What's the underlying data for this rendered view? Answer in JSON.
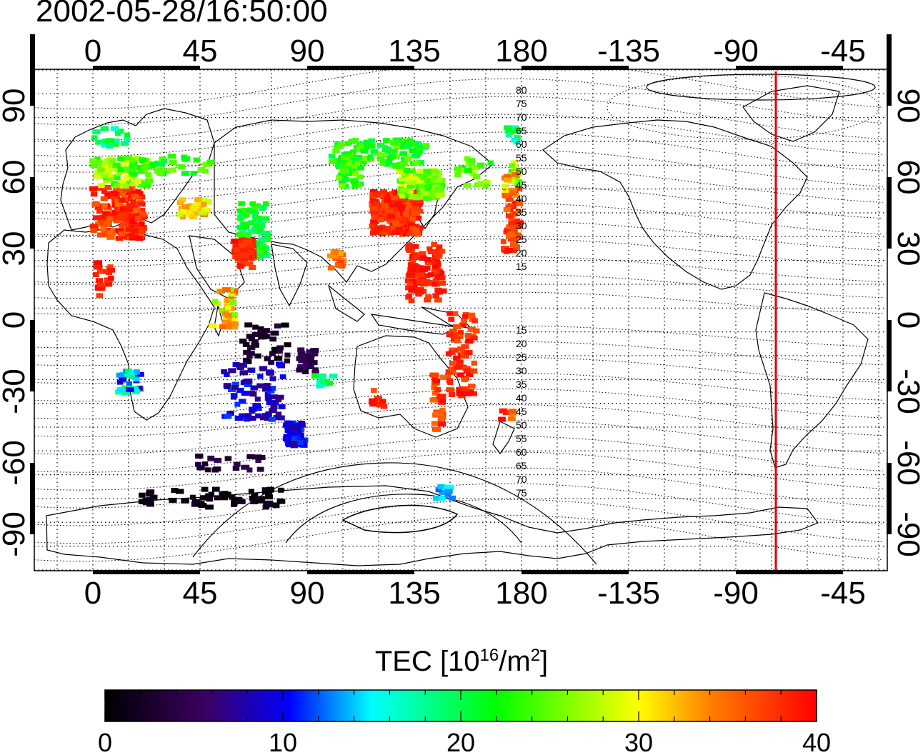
{
  "timestamp": "2002-05-28/16:50:00",
  "map": {
    "top_axis_labels": [
      "0",
      "45",
      "90",
      "135",
      "180",
      "-135",
      "-90",
      "-45"
    ],
    "bottom_axis_labels": [
      "0",
      "45",
      "90",
      "135",
      "180",
      "-135",
      "-90",
      "-45"
    ],
    "left_axis_labels": [
      "90",
      "60",
      "30",
      "0",
      "-30",
      "-60",
      "-90"
    ],
    "right_axis_labels": [
      "90",
      "60",
      "30",
      "0",
      "-30",
      "-60",
      "-90"
    ],
    "north_mlat_labels": [
      "80",
      "75",
      "70",
      "65",
      "60",
      "55",
      "50",
      "45",
      "40",
      "35",
      "30",
      "25",
      "20",
      "15"
    ],
    "south_mlat_labels": [
      "15",
      "20",
      "25",
      "30",
      "35",
      "40",
      "45",
      "50",
      "55",
      "60",
      "65",
      "70",
      "75"
    ],
    "colors": {
      "frame": "#000000",
      "subsolar_meridian": "#e00000",
      "grid": "#000000",
      "coastline": "#000000"
    }
  },
  "colorbar": {
    "title_prefix": "TEC  [10",
    "title_exp1": "16",
    "title_mid": "/m",
    "title_exp2": "2",
    "title_suffix": "]",
    "min": 0,
    "max": 40,
    "tick_labels": [
      "0",
      "10",
      "20",
      "30",
      "40"
    ],
    "colormap": [
      "#000000",
      "#3c0064",
      "#0000ff",
      "#00ffff",
      "#00ff00",
      "#ffff00",
      "#ff8000",
      "#ff0000"
    ]
  }
}
